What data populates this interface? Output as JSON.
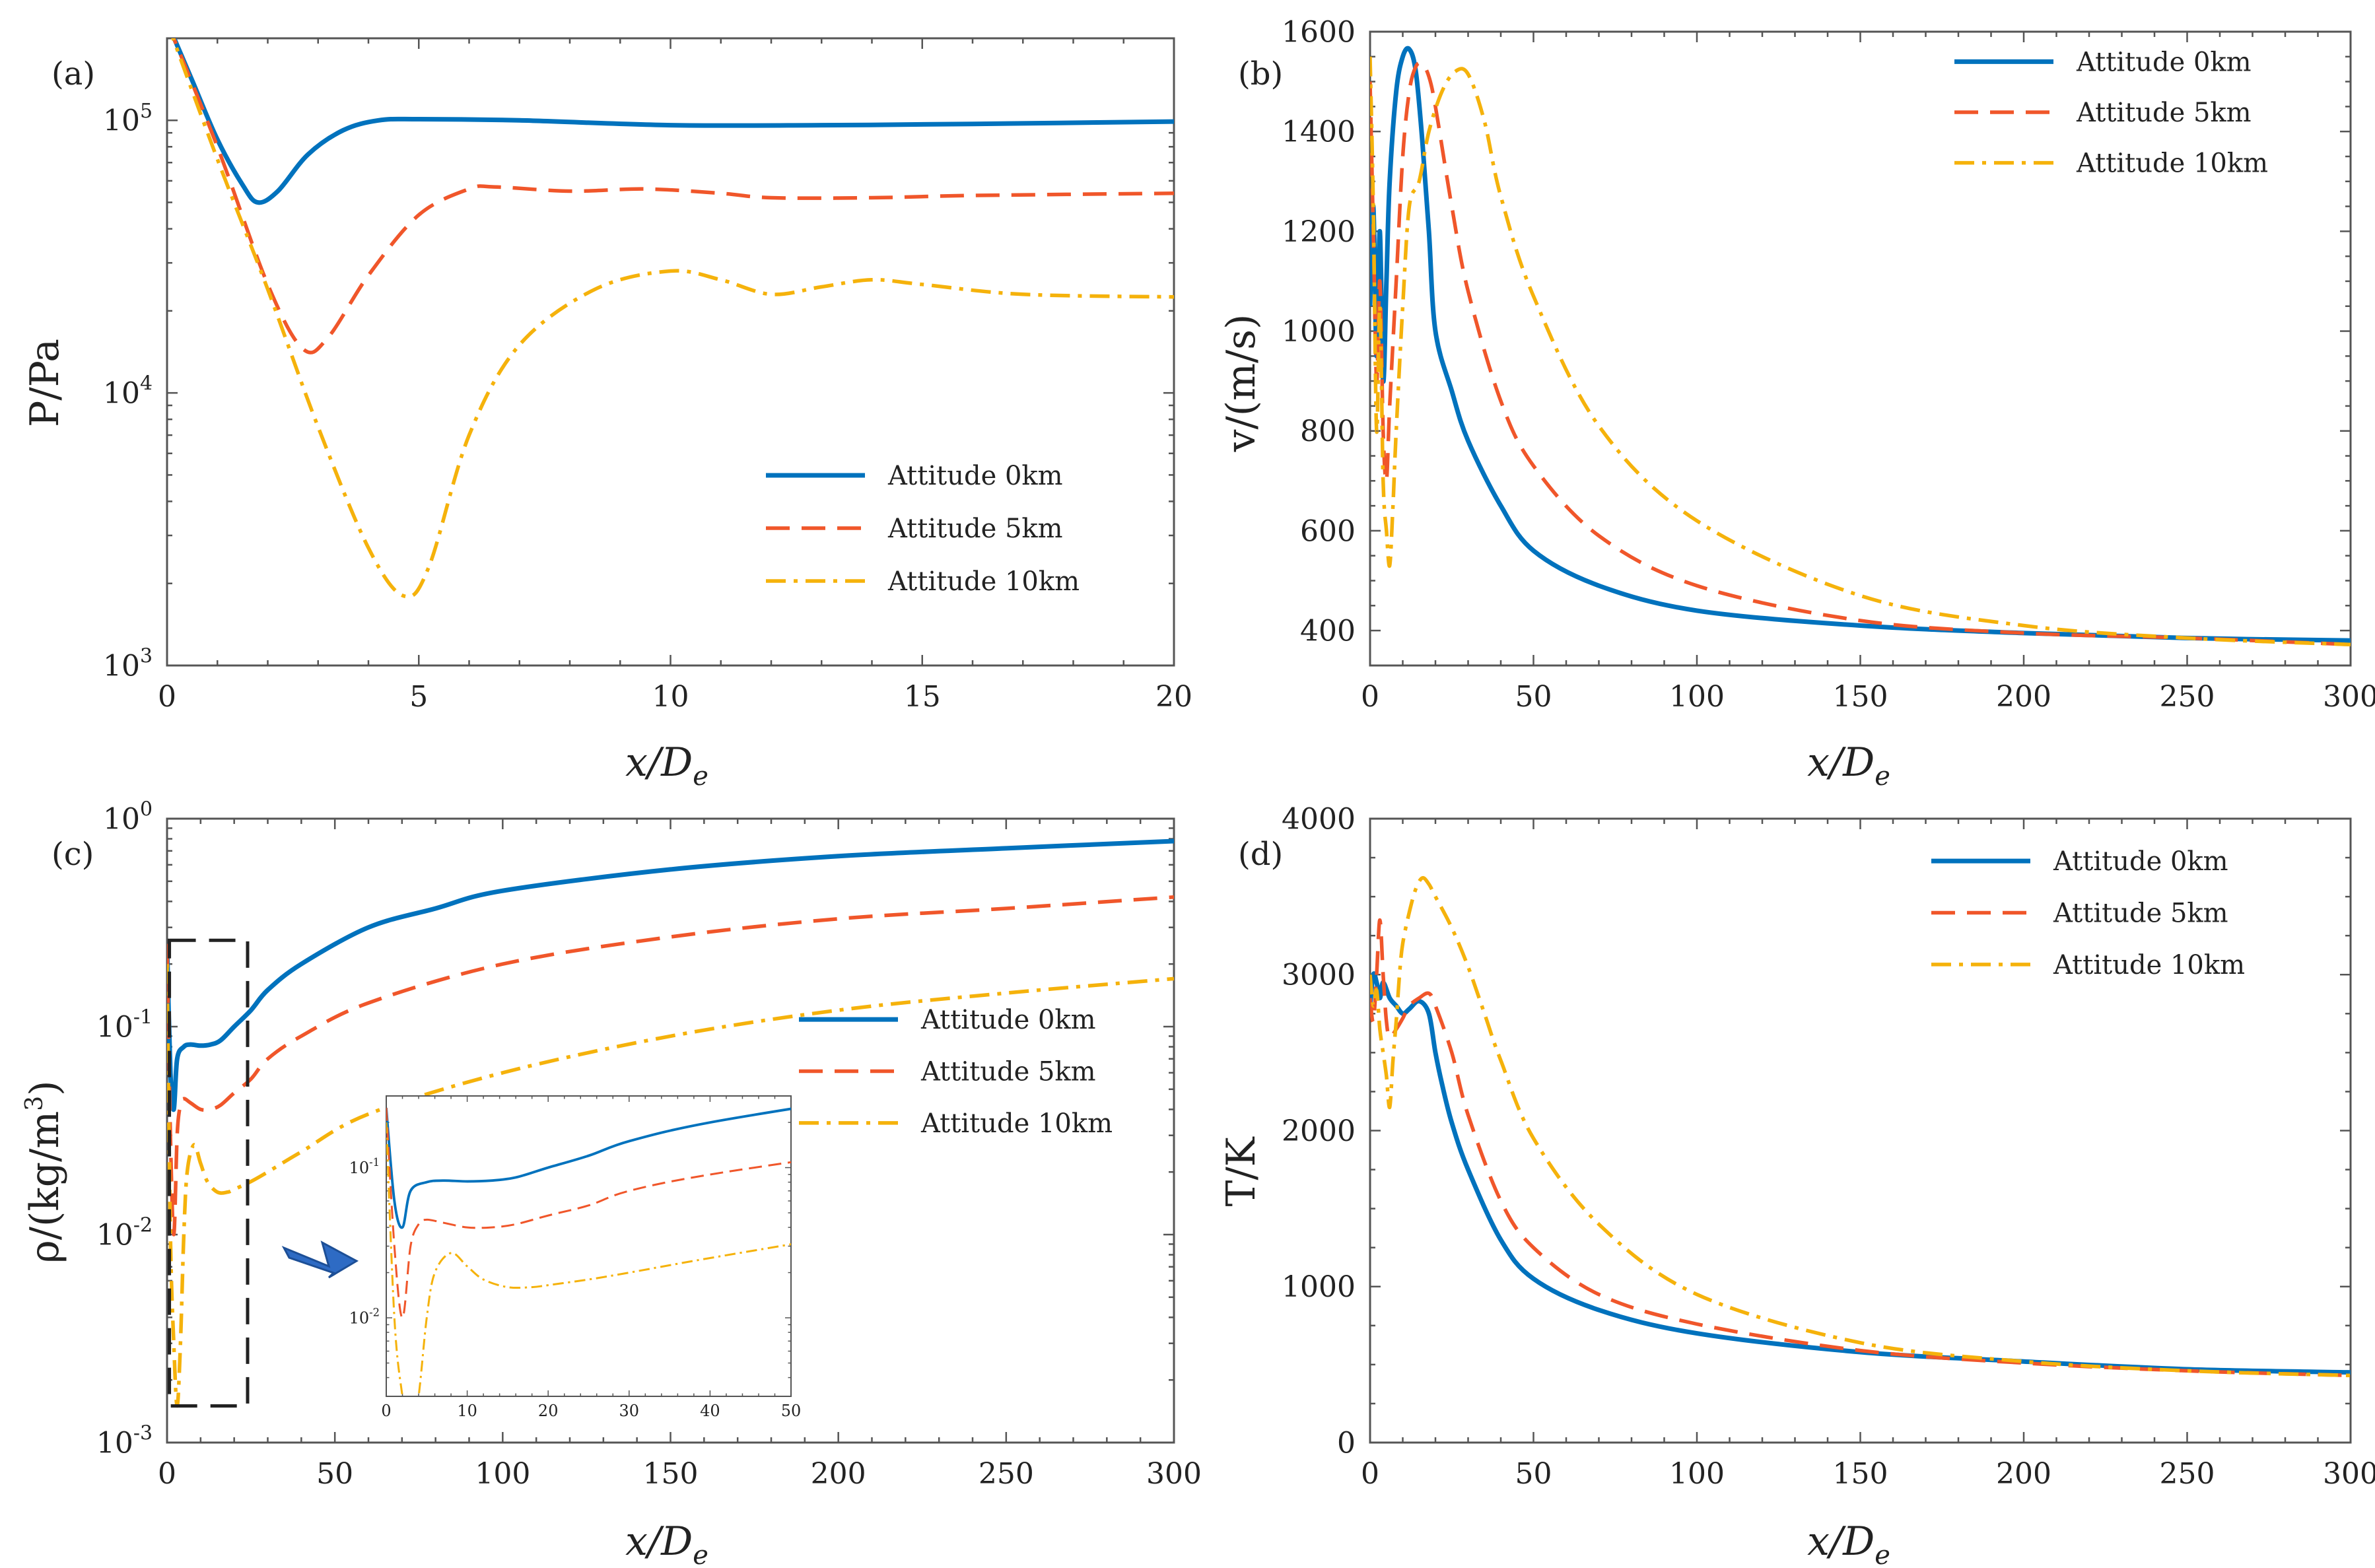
{
  "figure": {
    "colors": {
      "s0": "#0072BD",
      "s5": "#F0562A",
      "s10": "#F5B20B",
      "axis": "#555555"
    },
    "legend_labels": [
      "Attitude 0km",
      "Attitude 5km",
      "Attitude 10km"
    ]
  },
  "chart_data": [
    {
      "id": "a",
      "panel_label": "(a)",
      "type": "line",
      "xlabel": "x/D_e",
      "xlabel_main": "x/D",
      "xlabel_sub": "e",
      "ylabel": "P/Pa",
      "xlim": [
        0,
        20
      ],
      "ylim": [
        1000,
        200000
      ],
      "yscale": "log",
      "xticks": [
        0,
        5,
        10,
        15,
        20
      ],
      "xtick_labels": [
        "0",
        "5",
        "10",
        "15",
        "20"
      ],
      "yticks": [
        1000,
        10000,
        100000
      ],
      "ytick_labels": [
        {
          "base": "10",
          "exp": "3"
        },
        {
          "base": "10",
          "exp": "4"
        },
        {
          "base": "10",
          "exp": "5"
        }
      ],
      "legend_position": "bottom-right",
      "series": [
        {
          "name": "Attitude 0km",
          "style": "solid",
          "x": [
            0,
            0.5,
            1.0,
            1.5,
            1.8,
            2.2,
            2.8,
            3.5,
            4.2,
            5,
            7,
            10,
            13,
            16,
            20
          ],
          "y": [
            230000,
            140000,
            85000,
            58000,
            50000,
            55000,
            75000,
            92000,
            100000,
            101000,
            100000,
            96000,
            96000,
            97000,
            99000
          ]
        },
        {
          "name": "Attitude 5km",
          "style": "dashed",
          "x": [
            0,
            1,
            2,
            2.7,
            3.2,
            4,
            5,
            6,
            6.5,
            8,
            9.5,
            11,
            12,
            14,
            16,
            20
          ],
          "y": [
            230000,
            80000,
            25000,
            14500,
            16000,
            27000,
            45000,
            56000,
            57000,
            55000,
            56000,
            54000,
            52000,
            52000,
            53000,
            54000
          ]
        },
        {
          "name": "Attitude 10km",
          "style": "dashdot",
          "x": [
            0,
            1,
            2,
            3,
            4,
            4.7,
            5.2,
            6,
            7,
            8.5,
            10,
            11,
            12,
            13,
            14,
            15,
            17,
            20
          ],
          "y": [
            230000,
            72000,
            24000,
            7500,
            2700,
            1800,
            2300,
            7000,
            15000,
            24000,
            28000,
            26000,
            23000,
            24500,
            26000,
            25000,
            23000,
            22500
          ]
        }
      ]
    },
    {
      "id": "b",
      "panel_label": "(b)",
      "type": "line",
      "xlabel": "x/D_e",
      "xlabel_main": "x/D",
      "xlabel_sub": "e",
      "ylabel": "v/(m/s)",
      "xlim": [
        0,
        300
      ],
      "ylim": [
        330,
        1600
      ],
      "xticks": [
        0,
        50,
        100,
        150,
        200,
        250,
        300
      ],
      "xtick_labels": [
        "0",
        "50",
        "100",
        "150",
        "200",
        "250",
        "300"
      ],
      "yticks": [
        400,
        600,
        800,
        1000,
        1200,
        1400,
        1600
      ],
      "ytick_labels": [
        "400",
        "600",
        "800",
        "1000",
        "1200",
        "1400",
        "1600"
      ],
      "legend_position": "top-right",
      "series": [
        {
          "name": "Attitude 0km",
          "style": "solid",
          "x": [
            0,
            1,
            2,
            3,
            4,
            5,
            6,
            8,
            10,
            12,
            14,
            16,
            18,
            20,
            25,
            30,
            40,
            50,
            70,
            100,
            150,
            200,
            250,
            300
          ],
          "y": [
            1050,
            1250,
            950,
            1200,
            900,
            1100,
            1300,
            1480,
            1550,
            1565,
            1520,
            1380,
            1200,
            1000,
            880,
            780,
            650,
            560,
            490,
            440,
            410,
            395,
            385,
            380
          ]
        },
        {
          "name": "Attitude 5km",
          "style": "dashed",
          "x": [
            0,
            1,
            2,
            3,
            4,
            5,
            6,
            8,
            10,
            12,
            14,
            16,
            18,
            20,
            25,
            30,
            40,
            50,
            70,
            100,
            150,
            200,
            250,
            300
          ],
          "y": [
            1500,
            1200,
            900,
            1100,
            800,
            700,
            850,
            1100,
            1350,
            1480,
            1530,
            1535,
            1510,
            1450,
            1250,
            1080,
            860,
            730,
            590,
            490,
            420,
            395,
            385,
            372
          ]
        },
        {
          "name": "Attitude 10km",
          "style": "dashdot",
          "x": [
            0,
            1,
            2,
            3,
            4,
            5,
            6,
            7,
            8,
            10,
            12,
            15,
            18,
            22,
            26,
            30,
            35,
            40,
            50,
            70,
            100,
            150,
            200,
            250,
            300
          ],
          "y": [
            1550,
            1250,
            800,
            1050,
            700,
            600,
            530,
            650,
            800,
            1050,
            1250,
            1300,
            1400,
            1480,
            1520,
            1515,
            1420,
            1270,
            1070,
            810,
            620,
            470,
            410,
            385,
            372
          ]
        }
      ]
    },
    {
      "id": "c",
      "panel_label": "(c)",
      "type": "line",
      "xlabel": "x/D_e",
      "xlabel_main": "x/D",
      "xlabel_sub": "e",
      "ylabel": "ρ/(kg/m3)",
      "ylabel_main": "ρ/(kg/m",
      "ylabel_sup": "3",
      "ylabel_end": ")",
      "xlim": [
        0,
        300
      ],
      "ylim": [
        0.001,
        1
      ],
      "yscale": "log",
      "xticks": [
        0,
        50,
        100,
        150,
        200,
        250,
        300
      ],
      "xtick_labels": [
        "0",
        "50",
        "100",
        "150",
        "200",
        "250",
        "300"
      ],
      "yticks": [
        0.001,
        0.01,
        0.1,
        1
      ],
      "ytick_labels": [
        {
          "base": "10",
          "exp": "-3"
        },
        {
          "base": "10",
          "exp": "-2"
        },
        {
          "base": "10",
          "exp": "-1"
        },
        {
          "base": "10",
          "exp": "0"
        }
      ],
      "legend_position": "center-right",
      "series": [
        {
          "name": "Attitude 0km",
          "style": "solid",
          "x": [
            0,
            1,
            2,
            3,
            5,
            7,
            10,
            13,
            16,
            20,
            25,
            30,
            40,
            60,
            80,
            100,
            150,
            200,
            250,
            300
          ],
          "y": [
            0.25,
            0.06,
            0.04,
            0.07,
            0.08,
            0.082,
            0.081,
            0.082,
            0.086,
            0.1,
            0.12,
            0.15,
            0.2,
            0.3,
            0.37,
            0.45,
            0.57,
            0.66,
            0.72,
            0.78
          ]
        },
        {
          "name": "Attitude 5km",
          "style": "dashed",
          "x": [
            0,
            1,
            2,
            3,
            4,
            5,
            7,
            10,
            13,
            16,
            20,
            25,
            30,
            40,
            60,
            100,
            150,
            200,
            250,
            300
          ],
          "y": [
            0.25,
            0.03,
            0.01,
            0.03,
            0.042,
            0.045,
            0.043,
            0.04,
            0.04,
            0.042,
            0.048,
            0.056,
            0.07,
            0.09,
            0.13,
            0.2,
            0.27,
            0.33,
            0.37,
            0.42
          ]
        },
        {
          "name": "Attitude 10km",
          "style": "dashdot",
          "x": [
            0,
            1,
            2,
            3,
            4,
            5,
            6,
            8,
            10,
            12,
            15,
            18,
            20,
            25,
            30,
            40,
            60,
            100,
            150,
            200,
            250,
            300
          ],
          "y": [
            0.2,
            0.01,
            0.003,
            0.0015,
            0.003,
            0.01,
            0.02,
            0.027,
            0.022,
            0.018,
            0.016,
            0.016,
            0.0165,
            0.018,
            0.02,
            0.025,
            0.038,
            0.06,
            0.09,
            0.12,
            0.145,
            0.17
          ]
        }
      ],
      "inset": {
        "xlim": [
          0,
          50
        ],
        "ylim": [
          0.003,
          0.3
        ],
        "yscale": "log",
        "xticks": [
          0,
          10,
          20,
          30,
          40,
          50
        ],
        "xtick_labels": [
          "0",
          "10",
          "20",
          "30",
          "40",
          "50"
        ],
        "yticks": [
          0.01,
          0.1
        ],
        "ytick_labels": [
          {
            "base": "10",
            "exp": "-2"
          },
          {
            "base": "10",
            "exp": "-1"
          }
        ]
      }
    },
    {
      "id": "d",
      "panel_label": "(d)",
      "type": "line",
      "xlabel": "x/D_e",
      "xlabel_main": "x/D",
      "xlabel_sub": "e",
      "ylabel": "T/K",
      "xlim": [
        0,
        300
      ],
      "ylim": [
        0,
        4000
      ],
      "xticks": [
        0,
        50,
        100,
        150,
        200,
        250,
        300
      ],
      "xtick_labels": [
        "0",
        "50",
        "100",
        "150",
        "200",
        "250",
        "300"
      ],
      "yticks": [
        0,
        1000,
        2000,
        3000,
        4000
      ],
      "ytick_labels": [
        "0",
        "1000",
        "2000",
        "3000",
        "4000"
      ],
      "legend_position": "top-right",
      "series": [
        {
          "name": "Attitude 0km",
          "style": "solid",
          "x": [
            0,
            1,
            2,
            3,
            4,
            6,
            8,
            10,
            12,
            15,
            18,
            20,
            22,
            25,
            30,
            40,
            50,
            70,
            100,
            150,
            200,
            250,
            300
          ],
          "y": [
            2800,
            3000,
            2950,
            2850,
            2950,
            2850,
            2800,
            2750,
            2780,
            2830,
            2750,
            2500,
            2300,
            2050,
            1750,
            1300,
            1050,
            850,
            700,
            580,
            520,
            470,
            450
          ]
        },
        {
          "name": "Attitude 5km",
          "style": "dashed",
          "x": [
            0,
            1,
            2,
            3,
            4,
            5,
            6,
            8,
            10,
            12,
            15,
            18,
            20,
            25,
            30,
            40,
            50,
            70,
            100,
            150,
            200,
            250,
            300
          ],
          "y": [
            2850,
            2700,
            3000,
            3350,
            3000,
            2700,
            2600,
            2650,
            2720,
            2800,
            2850,
            2880,
            2800,
            2500,
            2100,
            1550,
            1250,
            950,
            760,
            590,
            510,
            460,
            430
          ]
        },
        {
          "name": "Attitude 10km",
          "style": "dashdot",
          "x": [
            0,
            1,
            2,
            3,
            4,
            5,
            6,
            7,
            8,
            9,
            10,
            12,
            14,
            16,
            18,
            20,
            25,
            30,
            35,
            40,
            50,
            70,
            100,
            150,
            200,
            250,
            300
          ],
          "y": [
            3000,
            2800,
            2900,
            2650,
            2500,
            2350,
            2150,
            2450,
            2700,
            3000,
            3200,
            3400,
            3550,
            3620,
            3580,
            3500,
            3300,
            3050,
            2750,
            2450,
            1950,
            1400,
            950,
            640,
            520,
            460,
            430
          ]
        }
      ]
    }
  ]
}
